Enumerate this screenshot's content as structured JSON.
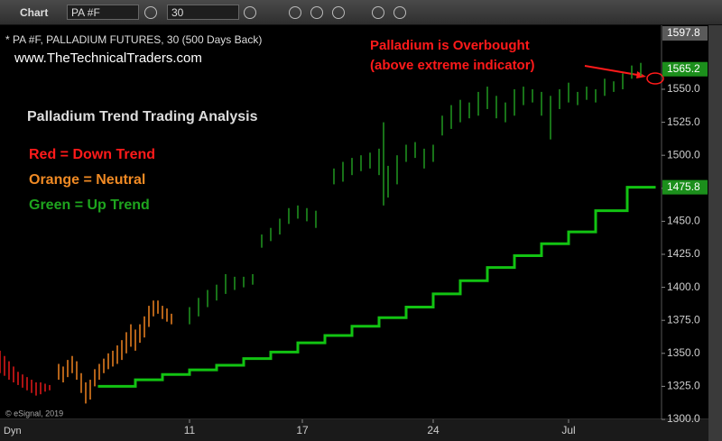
{
  "toolbar": {
    "title": "Chart",
    "symbol": "PA #F",
    "interval": "30"
  },
  "chart_data": {
    "type": "ohlc",
    "header": "* PA #F, PALLADIUM FUTURES, 30 (500 Days Back)",
    "website": "www.TheTechnicalTraders.com",
    "title": "Palladium Trend Trading Analysis",
    "legend_texts": [
      {
        "text": "Red = Down Trend",
        "color": "#ff1a1a"
      },
      {
        "text": "Orange = Neutral",
        "color": "#f08a24"
      },
      {
        "text": "Green = Up Trend",
        "color": "#1ea51e"
      }
    ],
    "annotation": [
      "Palladium is Overbought",
      "(above extreme indicator)"
    ],
    "copyright": "© eSignal, 2019",
    "x_label": "Dyn",
    "xlim": [
      0,
      145
    ],
    "xticks": [
      {
        "value": 42,
        "label": "11"
      },
      {
        "value": 67,
        "label": "17"
      },
      {
        "value": 96,
        "label": "24"
      },
      {
        "value": 126,
        "label": "Jul"
      }
    ],
    "ylim": [
      1300,
      1597.8
    ],
    "yticks": [
      {
        "value": 1300,
        "label": "1300.0"
      },
      {
        "value": 1325,
        "label": "1325.0"
      },
      {
        "value": 1350,
        "label": "1350.0"
      },
      {
        "value": 1375,
        "label": "1375.0"
      },
      {
        "value": 1400,
        "label": "1400.0"
      },
      {
        "value": 1425,
        "label": "1425.0"
      },
      {
        "value": 1450,
        "label": "1450.0"
      },
      {
        "value": 1475,
        "label": "1475.0"
      },
      {
        "value": 1500,
        "label": "1500.0"
      },
      {
        "value": 1525,
        "label": "1525.0"
      },
      {
        "value": 1550,
        "label": "1550.0"
      }
    ],
    "last_price": 1565.2,
    "grid": false,
    "series": [
      {
        "color": "#d81818",
        "x": [
          0,
          1,
          2,
          3,
          4,
          5,
          6,
          7,
          8,
          9,
          10,
          11
        ],
        "low": [
          1335,
          1333,
          1330,
          1328,
          1326,
          1324,
          1322,
          1320,
          1318,
          1319,
          1321,
          1322
        ],
        "high": [
          1352,
          1348,
          1344,
          1340,
          1336,
          1334,
          1332,
          1330,
          1328,
          1328,
          1327,
          1326
        ]
      },
      {
        "color": "#e07a1f",
        "x": [
          13,
          14,
          15,
          16,
          17,
          18,
          19,
          20,
          21,
          22,
          23,
          24,
          25,
          26,
          27,
          28,
          29,
          30,
          31,
          32,
          33,
          34,
          35,
          36,
          37,
          38
        ],
        "low": [
          1330,
          1328,
          1332,
          1335,
          1330,
          1320,
          1312,
          1315,
          1325,
          1330,
          1335,
          1338,
          1340,
          1342,
          1345,
          1350,
          1355,
          1352,
          1358,
          1362,
          1370,
          1378,
          1380,
          1376,
          1374,
          1372
        ],
        "high": [
          1342,
          1340,
          1345,
          1348,
          1344,
          1335,
          1328,
          1330,
          1338,
          1342,
          1346,
          1350,
          1352,
          1356,
          1360,
          1366,
          1372,
          1368,
          1372,
          1378,
          1386,
          1390,
          1390,
          1386,
          1384,
          1380
        ]
      },
      {
        "color": "#1f8f1f",
        "x": [
          42,
          44,
          46,
          48,
          50,
          52,
          54,
          56,
          58,
          60,
          62,
          64,
          66,
          68,
          70,
          74,
          76,
          78,
          80,
          82,
          84,
          85,
          86,
          88,
          90,
          92,
          94,
          96,
          98,
          100,
          102,
          104,
          106,
          108,
          110,
          112,
          114,
          116,
          118,
          120,
          122,
          124,
          126,
          128,
          130,
          132,
          134,
          136,
          138,
          140,
          142
        ],
        "low": [
          1372,
          1378,
          1385,
          1390,
          1395,
          1398,
          1400,
          1402,
          1430,
          1435,
          1440,
          1448,
          1452,
          1450,
          1445,
          1478,
          1480,
          1485,
          1488,
          1490,
          1485,
          1462,
          1468,
          1478,
          1495,
          1498,
          1490,
          1495,
          1515,
          1520,
          1525,
          1528,
          1530,
          1535,
          1528,
          1525,
          1530,
          1538,
          1540,
          1530,
          1512,
          1535,
          1540,
          1538,
          1542,
          1540,
          1545,
          1548,
          1550,
          1558,
          1560
        ],
        "high": [
          1385,
          1392,
          1398,
          1402,
          1410,
          1408,
          1408,
          1410,
          1440,
          1445,
          1452,
          1460,
          1462,
          1460,
          1458,
          1490,
          1495,
          1498,
          1500,
          1502,
          1505,
          1525,
          1492,
          1500,
          1508,
          1510,
          1505,
          1508,
          1530,
          1538,
          1542,
          1540,
          1548,
          1552,
          1545,
          1540,
          1550,
          1552,
          1550,
          1548,
          1545,
          1550,
          1555,
          1548,
          1552,
          1550,
          1558,
          1556,
          1562,
          1568,
          1570
        ]
      }
    ],
    "trend_line": {
      "color": "#12c312",
      "x": [
        22,
        30,
        36,
        42,
        48,
        54,
        60,
        66,
        72,
        78,
        84,
        90,
        96,
        102,
        108,
        114,
        120,
        126,
        132,
        139
      ],
      "values": [
        1325,
        1330,
        1334,
        1337.5,
        1341,
        1346,
        1351,
        1358,
        1363.5,
        1370.5,
        1377,
        1385,
        1395,
        1405,
        1415,
        1424,
        1433,
        1442,
        1458,
        1475.8
      ]
    }
  }
}
